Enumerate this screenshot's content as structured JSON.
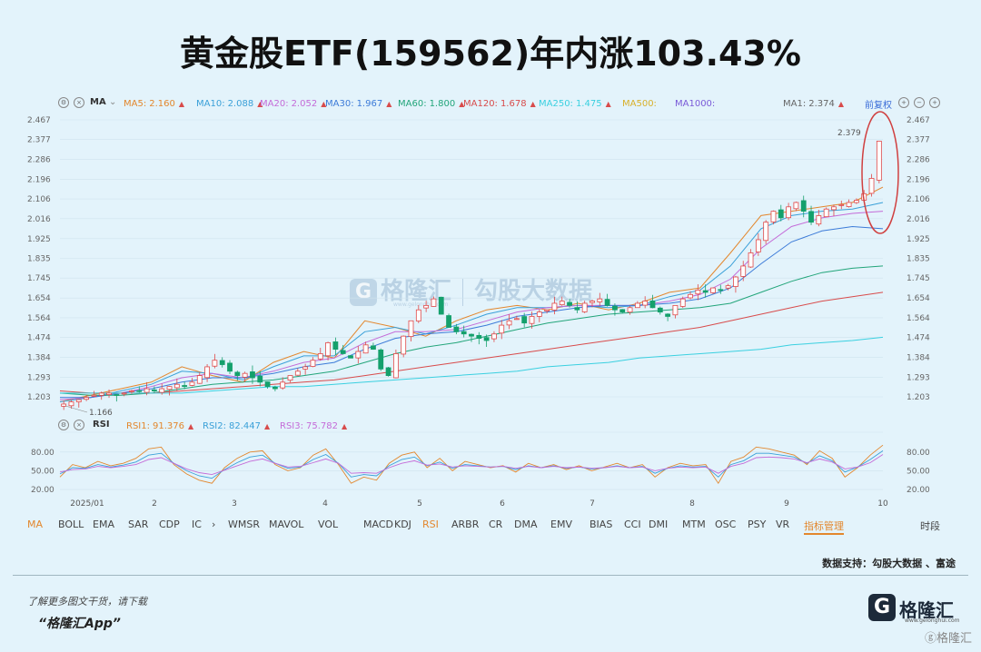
{
  "title": "黄金股ETF(159562)年内涨103.43%",
  "ma_legend": {
    "label": "MA",
    "items": [
      {
        "label": "MA5:",
        "value": "2.160",
        "color": "#e3872d"
      },
      {
        "label": "MA10:",
        "value": "2.088",
        "color": "#3aa0d8"
      },
      {
        "label": "MA20:",
        "value": "2.052",
        "color": "#c46bd8"
      },
      {
        "label": "MA30:",
        "value": "1.967",
        "color": "#3c7bd8"
      },
      {
        "label": "MA60:",
        "value": "1.800",
        "color": "#22a57a"
      },
      {
        "label": "MA120:",
        "value": "1.678",
        "color": "#d84b4b"
      },
      {
        "label": "MA250:",
        "value": "1.475",
        "color": "#3ad0e0"
      },
      {
        "label": "MA500:",
        "value": "",
        "color": "#d8b02a"
      },
      {
        "label": "MA1000:",
        "value": "",
        "color": "#7a5ad8"
      },
      {
        "label": "MA1:",
        "value": "2.374",
        "color": "#666666"
      }
    ],
    "adjust_label": "前复权"
  },
  "rsi_legend": {
    "label": "RSI",
    "items": [
      {
        "label": "RSI1:",
        "value": "91.376",
        "color": "#e3872d"
      },
      {
        "label": "RSI2:",
        "value": "82.447",
        "color": "#3aa0d8"
      },
      {
        "label": "RSI3:",
        "value": "75.782",
        "color": "#c46bd8"
      }
    ]
  },
  "indicators": {
    "items": [
      "MA",
      "BOLL",
      "EMA",
      "SAR",
      "CDP",
      "IC",
      "›",
      "WMSR",
      "MAVOL",
      "VOL",
      "MACD",
      "KDJ",
      "RSI",
      "ARBR",
      "CR",
      "DMA",
      "EMV",
      "BIAS",
      "CCI",
      "DMI",
      "MTM",
      "OSC",
      "PSY",
      "VR",
      "指标管理",
      "时段"
    ],
    "active": [
      "MA",
      "RSI"
    ]
  },
  "support_text": "数据支持：勾股大数据 、富途",
  "footer": {
    "line1": "了解更多图文干货，请下载",
    "line2": "“格隆汇App”",
    "logo_text": "格隆汇",
    "logo_small": "www.gelonghui.com",
    "watermark": "ⓖ格隆汇"
  },
  "watermark": {
    "brand": "格隆汇",
    "brand_small": "www.gelonghui.com",
    "partner": "勾股大数据"
  },
  "chart_data": {
    "type": "candlestick",
    "price_axis": {
      "ylim": [
        1.15,
        2.5
      ],
      "ticks": [
        "2.467",
        "2.377",
        "2.286",
        "2.196",
        "2.106",
        "2.016",
        "1.925",
        "1.835",
        "1.745",
        "1.654",
        "1.564",
        "1.474",
        "1.384",
        "1.293",
        "1.203"
      ]
    },
    "annotations": {
      "high": "2.379",
      "low": "1.166"
    },
    "x_ticks": [
      "2025/01",
      "2",
      "3",
      "4",
      "5",
      "6",
      "7",
      "8",
      "9",
      "10"
    ],
    "close_series": [
      1.17,
      1.18,
      1.19,
      1.2,
      1.21,
      1.22,
      1.22,
      1.21,
      1.22,
      1.23,
      1.23,
      1.24,
      1.23,
      1.24,
      1.25,
      1.26,
      1.25,
      1.27,
      1.3,
      1.34,
      1.37,
      1.35,
      1.32,
      1.3,
      1.31,
      1.29,
      1.27,
      1.25,
      1.24,
      1.27,
      1.3,
      1.32,
      1.34,
      1.37,
      1.4,
      1.45,
      1.42,
      1.4,
      1.38,
      1.41,
      1.44,
      1.42,
      1.33,
      1.3,
      1.4,
      1.48,
      1.55,
      1.6,
      1.62,
      1.65,
      1.58,
      1.52,
      1.5,
      1.49,
      1.48,
      1.47,
      1.46,
      1.49,
      1.53,
      1.55,
      1.56,
      1.54,
      1.57,
      1.59,
      1.6,
      1.63,
      1.64,
      1.62,
      1.6,
      1.63,
      1.64,
      1.65,
      1.62,
      1.6,
      1.59,
      1.61,
      1.63,
      1.64,
      1.61,
      1.59,
      1.57,
      1.62,
      1.65,
      1.67,
      1.69,
      1.68,
      1.7,
      1.69,
      1.71,
      1.75,
      1.8,
      1.86,
      1.92,
      2.0,
      2.05,
      2.02,
      2.07,
      2.09,
      2.05,
      2.0,
      2.03,
      2.06,
      2.07,
      2.08,
      2.09,
      2.1,
      2.13,
      2.2,
      2.37
    ],
    "ma_series": {
      "MA5": {
        "color": "#e3872d",
        "values": [
          1.18,
          1.21,
          1.24,
          1.27,
          1.34,
          1.3,
          1.27,
          1.36,
          1.41,
          1.38,
          1.55,
          1.52,
          1.48,
          1.55,
          1.6,
          1.62,
          1.6,
          1.63,
          1.6,
          1.63,
          1.68,
          1.7,
          1.86,
          2.03,
          2.05,
          2.07,
          2.09,
          2.16
        ]
      },
      "MA10": {
        "color": "#3aa0d8",
        "values": [
          1.18,
          1.2,
          1.23,
          1.26,
          1.32,
          1.31,
          1.28,
          1.34,
          1.39,
          1.39,
          1.5,
          1.52,
          1.49,
          1.53,
          1.58,
          1.61,
          1.61,
          1.62,
          1.61,
          1.62,
          1.66,
          1.69,
          1.8,
          1.97,
          2.03,
          2.05,
          2.06,
          2.09
        ]
      },
      "MA20": {
        "color": "#c46bd8",
        "values": [
          1.19,
          1.2,
          1.22,
          1.25,
          1.29,
          1.31,
          1.29,
          1.32,
          1.36,
          1.38,
          1.45,
          1.5,
          1.5,
          1.51,
          1.55,
          1.59,
          1.61,
          1.62,
          1.62,
          1.62,
          1.64,
          1.67,
          1.74,
          1.88,
          1.98,
          2.02,
          2.04,
          2.05
        ]
      },
      "MA30": {
        "color": "#3c7bd8",
        "values": [
          1.2,
          1.2,
          1.22,
          1.24,
          1.27,
          1.29,
          1.29,
          1.31,
          1.34,
          1.36,
          1.42,
          1.47,
          1.49,
          1.5,
          1.53,
          1.57,
          1.59,
          1.61,
          1.62,
          1.62,
          1.63,
          1.65,
          1.7,
          1.81,
          1.91,
          1.96,
          1.98,
          1.97
        ]
      },
      "MA60": {
        "color": "#22a57a",
        "values": [
          1.22,
          1.21,
          1.21,
          1.22,
          1.24,
          1.26,
          1.27,
          1.28,
          1.3,
          1.32,
          1.36,
          1.4,
          1.43,
          1.45,
          1.48,
          1.51,
          1.54,
          1.56,
          1.58,
          1.59,
          1.6,
          1.61,
          1.63,
          1.68,
          1.73,
          1.77,
          1.79,
          1.8
        ]
      },
      "MA120": {
        "color": "#d84b4b",
        "values": [
          1.23,
          1.22,
          1.22,
          1.22,
          1.23,
          1.24,
          1.25,
          1.26,
          1.27,
          1.28,
          1.3,
          1.32,
          1.34,
          1.36,
          1.38,
          1.4,
          1.42,
          1.44,
          1.46,
          1.48,
          1.5,
          1.52,
          1.55,
          1.58,
          1.61,
          1.64,
          1.66,
          1.68
        ]
      },
      "MA250": {
        "color": "#3ad0e0",
        "values": [
          1.22,
          1.22,
          1.22,
          1.22,
          1.22,
          1.23,
          1.24,
          1.25,
          1.25,
          1.26,
          1.27,
          1.28,
          1.29,
          1.3,
          1.31,
          1.32,
          1.34,
          1.35,
          1.36,
          1.38,
          1.39,
          1.4,
          1.41,
          1.42,
          1.44,
          1.45,
          1.46,
          1.475
        ]
      }
    },
    "rsi_axis": {
      "ylim": [
        10,
        100
      ],
      "ticks": [
        "80.00",
        "50.00",
        "20.00"
      ]
    },
    "rsi_series": {
      "RSI1": {
        "color": "#e3872d",
        "values": [
          40,
          60,
          55,
          65,
          58,
          62,
          70,
          85,
          88,
          60,
          45,
          35,
          30,
          55,
          70,
          80,
          82,
          60,
          50,
          55,
          75,
          85,
          60,
          30,
          40,
          35,
          62,
          75,
          80,
          55,
          70,
          50,
          65,
          60,
          55,
          58,
          48,
          62,
          55,
          60,
          52,
          58,
          50,
          56,
          62,
          55,
          60,
          40,
          55,
          62,
          58,
          60,
          30,
          65,
          72,
          88,
          85,
          80,
          75,
          60,
          82,
          70,
          40,
          55,
          75,
          91
        ]
      },
      "RSI2": {
        "color": "#3aa0d8",
        "values": [
          45,
          55,
          54,
          60,
          56,
          59,
          64,
          75,
          78,
          62,
          50,
          42,
          38,
          52,
          63,
          72,
          75,
          62,
          54,
          56,
          68,
          76,
          62,
          40,
          44,
          42,
          58,
          68,
          72,
          58,
          64,
          54,
          60,
          58,
          56,
          57,
          52,
          58,
          55,
          58,
          54,
          56,
          53,
          55,
          58,
          55,
          57,
          46,
          54,
          58,
          56,
          57,
          40,
          60,
          66,
          78,
          78,
          75,
          72,
          62,
          74,
          66,
          48,
          56,
          68,
          82
        ]
      },
      "RSI3": {
        "color": "#c46bd8",
        "values": [
          48,
          52,
          53,
          57,
          55,
          57,
          60,
          68,
          71,
          62,
          53,
          47,
          44,
          51,
          58,
          65,
          69,
          62,
          56,
          57,
          63,
          69,
          62,
          46,
          47,
          46,
          55,
          62,
          66,
          59,
          61,
          56,
          58,
          57,
          56,
          57,
          54,
          57,
          55,
          57,
          55,
          56,
          54,
          55,
          57,
          55,
          56,
          50,
          54,
          56,
          55,
          56,
          46,
          57,
          62,
          71,
          72,
          71,
          69,
          63,
          69,
          64,
          53,
          56,
          63,
          76
        ]
      }
    }
  }
}
